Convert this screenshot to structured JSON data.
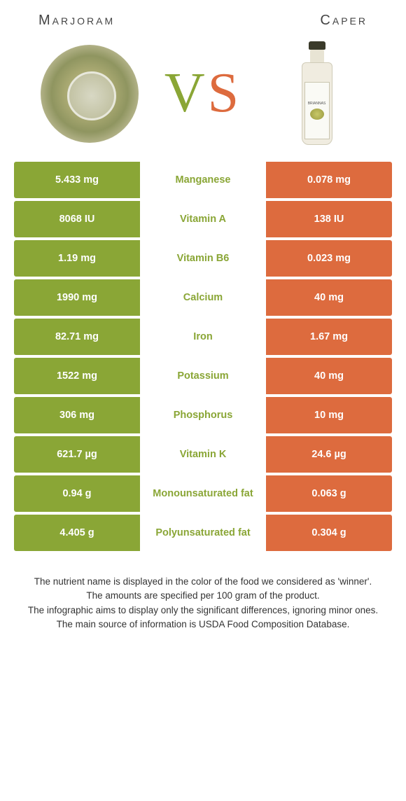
{
  "colors": {
    "left": "#8aa636",
    "right": "#dd6b3e",
    "white": "#ffffff"
  },
  "header": {
    "left_title": "Marjoram",
    "right_title": "Caper"
  },
  "vs": {
    "v": "V",
    "s": "S"
  },
  "bottle_brand": "BRIANNAS",
  "rows": [
    {
      "left": "5.433 mg",
      "mid": "Manganese",
      "right": "0.078 mg",
      "winner": "left"
    },
    {
      "left": "8068 IU",
      "mid": "Vitamin A",
      "right": "138 IU",
      "winner": "left"
    },
    {
      "left": "1.19 mg",
      "mid": "Vitamin B6",
      "right": "0.023 mg",
      "winner": "left"
    },
    {
      "left": "1990 mg",
      "mid": "Calcium",
      "right": "40 mg",
      "winner": "left"
    },
    {
      "left": "82.71 mg",
      "mid": "Iron",
      "right": "1.67 mg",
      "winner": "left"
    },
    {
      "left": "1522 mg",
      "mid": "Potassium",
      "right": "40 mg",
      "winner": "left"
    },
    {
      "left": "306 mg",
      "mid": "Phosphorus",
      "right": "10 mg",
      "winner": "left"
    },
    {
      "left": "621.7 µg",
      "mid": "Vitamin K",
      "right": "24.6 µg",
      "winner": "left"
    },
    {
      "left": "0.94 g",
      "mid": "Monounsaturated fat",
      "right": "0.063 g",
      "winner": "left"
    },
    {
      "left": "4.405 g",
      "mid": "Polyunsaturated fat",
      "right": "0.304 g",
      "winner": "left"
    }
  ],
  "footer": {
    "line1": "The nutrient name is displayed in the color of the food we considered as 'winner'.",
    "line2": "The amounts are specified per 100 gram of the product.",
    "line3": "The infographic aims to display only the significant differences, ignoring minor ones.",
    "line4": "The main source of information is USDA Food Composition Database."
  }
}
